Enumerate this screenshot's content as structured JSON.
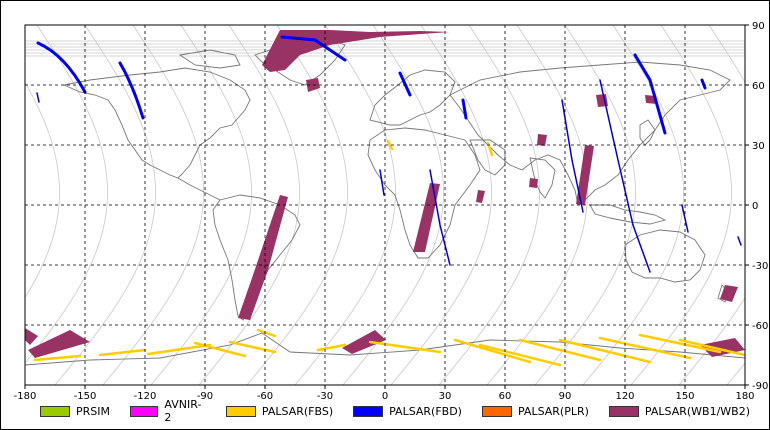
{
  "map": {
    "x_ticks": [
      "-180",
      "-150",
      "-120",
      "-90",
      "-60",
      "-30",
      "0",
      "30",
      "60",
      "90",
      "120",
      "150",
      "180"
    ],
    "y_ticks": [
      "90",
      "60",
      "30",
      "0",
      "-30",
      "-60",
      "-90"
    ],
    "lon_range": [
      -180,
      180
    ],
    "lat_range": [
      -90,
      90
    ],
    "grid": true
  },
  "legend": [
    {
      "label": "PRSIM",
      "color": "#99cc00"
    },
    {
      "label": "AVNIR-2",
      "color": "#ff00ff"
    },
    {
      "label": "PALSAR(FBS)",
      "color": "#ffcc00"
    },
    {
      "label": "PALSAR(FBD)",
      "color": "#0000ff"
    },
    {
      "label": "PALSAR(PLR)",
      "color": "#ff6600"
    },
    {
      "label": "PALSAR(WB1/WB2)",
      "color": "#993366"
    }
  ]
}
